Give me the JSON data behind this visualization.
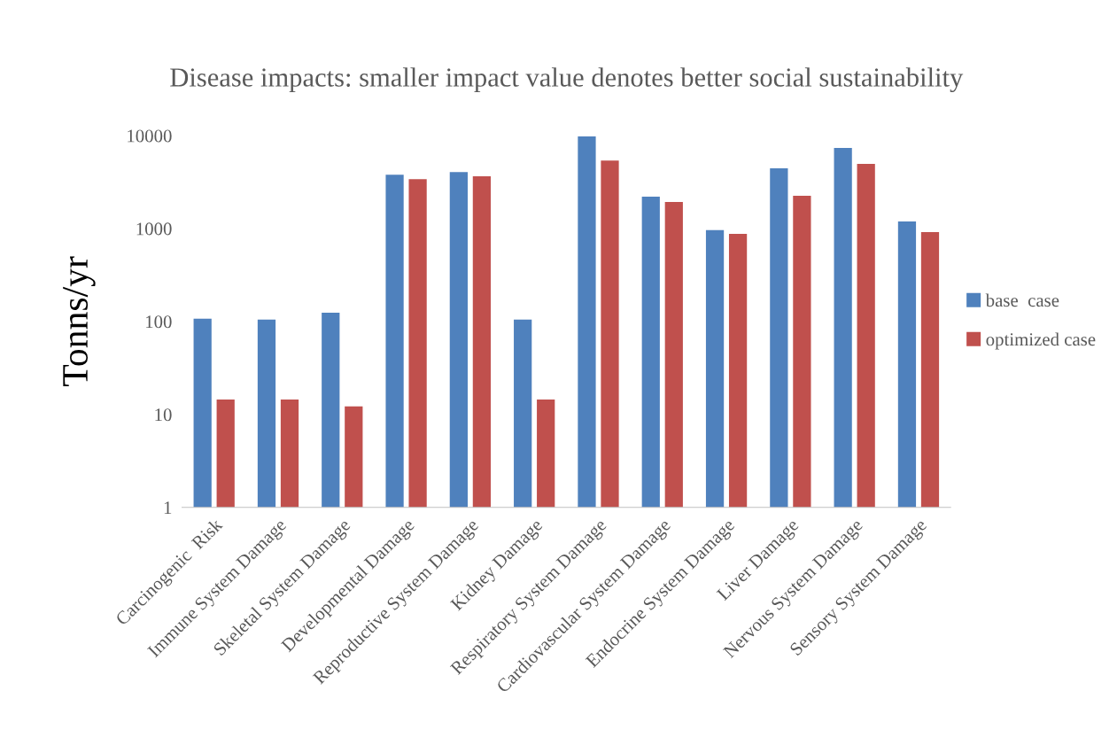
{
  "chart_data": {
    "type": "bar",
    "title": "Disease impacts: smaller impact value denotes better social sustainability",
    "ylabel": "Tonns/yr",
    "categories": [
      "Carcinogenic  Risk",
      "Immune System Damage",
      "Skeletal System Damage",
      "Developmental Damage",
      "Reproductive System Damage",
      "Kidney Damage",
      "Respiratory System Damage",
      "Cardiovascular System Damage",
      "Endocrine System Damage",
      "Liver Damage",
      "Nervous System Damage",
      "Sensory System Damage"
    ],
    "series": [
      {
        "name": "base  case",
        "color": "#4f81bd",
        "values": [
          107,
          105,
          124,
          3800,
          4050,
          105,
          9800,
          2200,
          960,
          4440,
          7360,
          1190
        ]
      },
      {
        "name": "optimized case",
        "color": "#c0504d",
        "values": [
          14.5,
          14.5,
          12.2,
          3400,
          3650,
          14.5,
          5400,
          1930,
          877,
          2250,
          4960,
          916
        ]
      }
    ],
    "log": "y",
    "ylim": [
      1,
      10000
    ],
    "yticks": [
      1,
      10,
      100,
      1000,
      10000
    ],
    "grid": false,
    "legend": "right"
  }
}
